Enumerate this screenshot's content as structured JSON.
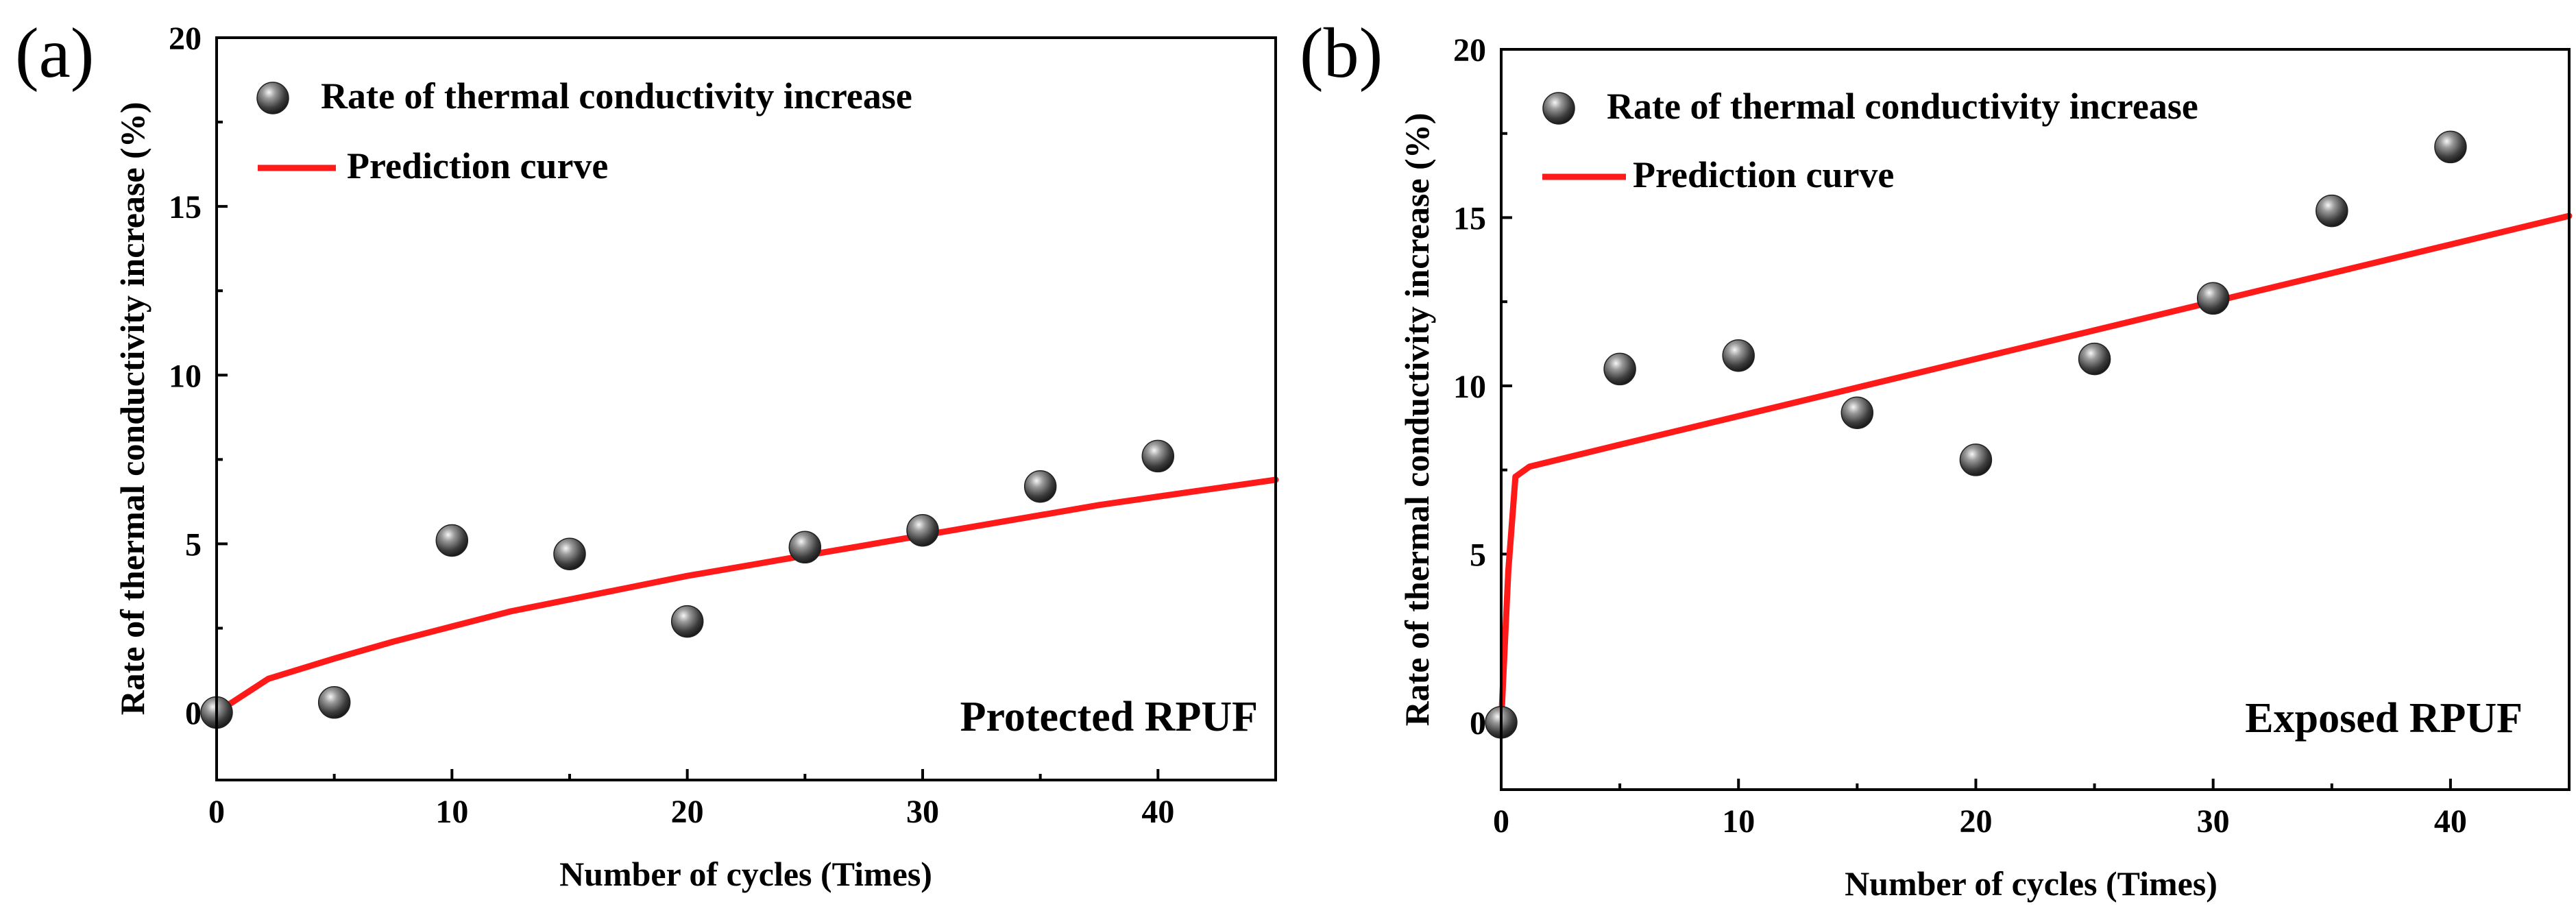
{
  "chart_data": [
    {
      "panel_label": "(a)",
      "type": "scatter",
      "title": "",
      "xlabel": "Number of cycles (Times)",
      "ylabel": "Rate of thermal conductivity increase (%)",
      "xlim": [
        0,
        45
      ],
      "ylim": [
        -2,
        20
      ],
      "x_ticks": [
        0,
        10,
        20,
        30,
        40
      ],
      "x_tick_labels": [
        "0",
        "10",
        "20",
        "30",
        "40"
      ],
      "y_ticks": [
        0,
        5,
        10,
        15,
        20
      ],
      "y_tick_labels": [
        "0",
        "5",
        "10",
        "15",
        "20"
      ],
      "grid": false,
      "annotation": "Protected RPUF",
      "legend": {
        "placement": "top-left",
        "entries": [
          "Rate of thermal conductivity increase",
          "Prediction curve"
        ]
      },
      "series": [
        {
          "name": "Rate of thermal conductivity increase",
          "kind": "scatter",
          "color": "#3a3a3a",
          "x": [
            0,
            5,
            10,
            15,
            20,
            25,
            30,
            35,
            40
          ],
          "y": [
            0,
            0.3,
            5.1,
            4.7,
            2.7,
            4.9,
            5.4,
            6.7,
            7.6
          ]
        },
        {
          "name": "Prediction curve",
          "kind": "line",
          "color": "#ff1a1a",
          "x": [
            0,
            2.2,
            5,
            7.5,
            10,
            12.5,
            15,
            17.5,
            20,
            22.5,
            25,
            27.5,
            30,
            32.5,
            35,
            37.5,
            40,
            42.5,
            45
          ],
          "y": [
            0,
            1.0,
            1.6,
            2.1,
            2.55,
            3.0,
            3.35,
            3.7,
            4.05,
            4.35,
            4.65,
            4.95,
            5.25,
            5.55,
            5.85,
            6.15,
            6.4,
            6.65,
            6.9
          ]
        }
      ]
    },
    {
      "panel_label": "(b)",
      "type": "scatter",
      "title": "",
      "xlabel": "Number of cycles (Times)",
      "ylabel": "Rate of thermal conductivity increase (%)",
      "xlim": [
        0,
        45
      ],
      "ylim": [
        -2,
        20
      ],
      "x_ticks": [
        0,
        10,
        20,
        30,
        40
      ],
      "x_tick_labels": [
        "0",
        "10",
        "20",
        "30",
        "40"
      ],
      "y_ticks": [
        0,
        5,
        10,
        15,
        20
      ],
      "y_tick_labels": [
        "0",
        "5",
        "10",
        "15",
        "20"
      ],
      "grid": false,
      "annotation": "Exposed RPUF",
      "legend": {
        "placement": "top-left",
        "entries": [
          "Rate of thermal conductivity increase",
          "Prediction curve"
        ]
      },
      "series": [
        {
          "name": "Rate of thermal conductivity increase",
          "kind": "scatter",
          "color": "#3a3a3a",
          "x": [
            0,
            5,
            10,
            15,
            20,
            25,
            30,
            35,
            40
          ],
          "y": [
            0,
            10.5,
            10.9,
            9.2,
            7.8,
            10.8,
            12.6,
            15.2,
            17.1
          ]
        },
        {
          "name": "Prediction curve",
          "kind": "line",
          "color": "#ff1a1a",
          "x": [
            0,
            0.3,
            0.6,
            1.2,
            5,
            10,
            15,
            20,
            25,
            30,
            35,
            40,
            45
          ],
          "y": [
            0,
            4.5,
            7.3,
            7.6,
            8.25,
            9.1,
            9.95,
            10.8,
            11.65,
            12.5,
            13.35,
            14.2,
            15.05
          ]
        }
      ]
    }
  ]
}
